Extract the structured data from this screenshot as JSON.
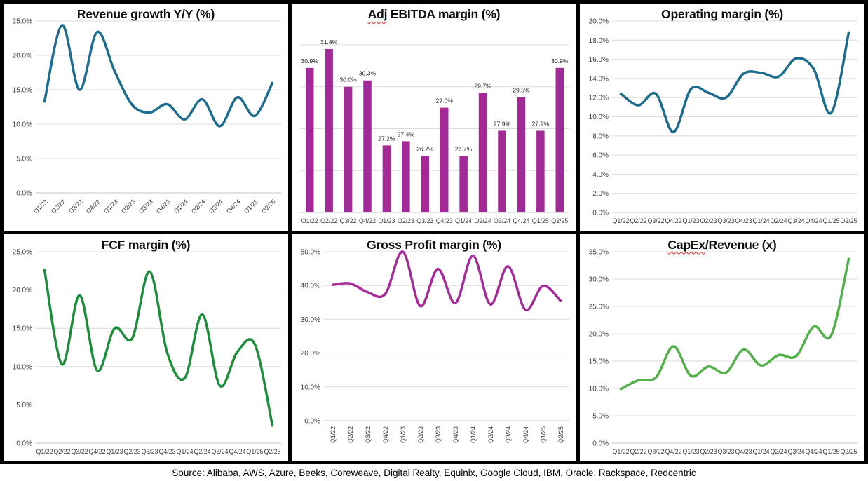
{
  "footer": {
    "source": "Source: Alibaba, AWS, Azure, Beeks, Coreweave, Digital Realty, Equinix, Google Cloud, IBM, Oracle, Rackspace, Redcentric"
  },
  "categories": [
    "Q1/22",
    "Q2/22",
    "Q3/22",
    "Q4/22",
    "Q1/23",
    "Q2/23",
    "Q3/23",
    "Q4/23",
    "Q1/24",
    "Q2/24",
    "Q3/24",
    "Q4/24",
    "Q1/25",
    "Q2/25"
  ],
  "chart_data": [
    {
      "type": "line",
      "title": "Revenue growth Y/Y (%)",
      "title_flagged": "",
      "title_rest": "Revenue growth Y/Y (%)",
      "color": "#1e6c8e",
      "ylim": [
        0,
        25
      ],
      "ytick_step": 5,
      "ytick_format": "percent-1dp",
      "show_y_labels": true,
      "x_label_rotation": 45,
      "grid": true,
      "legend": "none",
      "values": [
        13.3,
        24.4,
        15.0,
        23.4,
        17.7,
        12.8,
        11.7,
        12.9,
        10.7,
        13.6,
        9.7,
        13.9,
        11.2,
        16.0
      ]
    },
    {
      "type": "bar",
      "title": "Adj EBITDA margin (%)",
      "title_flagged": "Adj",
      "title_rest": " EBITDA margin (%)",
      "color": "#a12a96",
      "ylim": [
        24,
        32.5
      ],
      "ytick_step": 2,
      "ytick_format": "percent-1dp",
      "show_y_labels": false,
      "x_label_rotation": 0,
      "grid": true,
      "legend": "none",
      "data_labels": true,
      "values": [
        30.9,
        31.8,
        30.0,
        30.3,
        27.2,
        27.4,
        26.7,
        29.0,
        26.7,
        29.7,
        27.9,
        29.5,
        27.9,
        30.9
      ]
    },
    {
      "type": "line",
      "title": "Operating margin (%)",
      "title_flagged": "",
      "title_rest": "Operating margin (%)",
      "color": "#1e6c8e",
      "ylim": [
        0,
        20
      ],
      "ytick_step": 2,
      "ytick_format": "percent-1dp",
      "show_y_labels": true,
      "x_label_rotation": 0,
      "grid": true,
      "legend": "none",
      "values": [
        12.4,
        11.2,
        12.4,
        8.4,
        12.9,
        12.5,
        12.0,
        14.5,
        14.6,
        14.2,
        16.1,
        15.0,
        10.4,
        18.8
      ]
    },
    {
      "type": "line",
      "title": "FCF margin (%)",
      "title_flagged": "",
      "title_rest": "FCF margin (%)",
      "color": "#1e8c3b",
      "ylim": [
        0,
        25
      ],
      "ytick_step": 5,
      "ytick_format": "percent-1dp",
      "show_y_labels": true,
      "x_label_rotation": 0,
      "grid": true,
      "legend": "none",
      "values": [
        22.6,
        10.3,
        19.3,
        9.5,
        15.0,
        13.7,
        22.4,
        11.8,
        8.5,
        16.8,
        7.5,
        11.9,
        12.9,
        2.3
      ]
    },
    {
      "type": "line",
      "title": "Gross Profit margin (%)",
      "title_flagged": "",
      "title_rest": "Gross Profit margin (%)",
      "color": "#a32c99",
      "ylim": [
        0,
        50
      ],
      "ytick_step": 10,
      "ytick_format": "percent-1dp",
      "show_y_labels": true,
      "x_label_rotation": 90,
      "grid": true,
      "legend": "none",
      "values": [
        40.2,
        40.6,
        38.0,
        37.5,
        50.0,
        33.9,
        44.9,
        34.8,
        48.8,
        34.4,
        45.7,
        32.8,
        39.9,
        35.5
      ]
    },
    {
      "type": "line",
      "title": "CapEx/Revenue (x)",
      "title_flagged": "CapEx",
      "title_rest": "/Revenue (x)",
      "color": "#55b04b",
      "ylim": [
        0,
        35
      ],
      "ytick_step": 5,
      "ytick_format": "percent-1dp",
      "show_y_labels": true,
      "x_label_rotation": 0,
      "grid": true,
      "legend": "none",
      "values": [
        9.9,
        11.5,
        12.0,
        17.7,
        12.3,
        14.0,
        12.9,
        17.1,
        14.2,
        16.1,
        15.9,
        21.3,
        19.7,
        33.7
      ]
    }
  ]
}
